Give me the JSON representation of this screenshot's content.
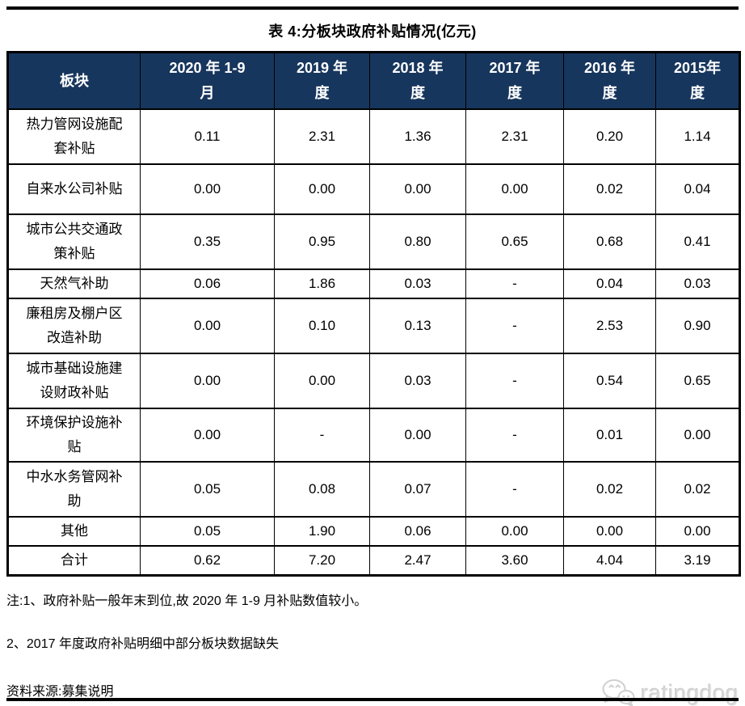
{
  "title": "表 4:分板块政府补贴情况(亿元)",
  "table": {
    "columns": [
      "板块",
      "2020 年 1-9\n月",
      "2019 年\n度",
      "2018 年\n度",
      "2017 年\n度",
      "2016 年\n度",
      "2015年\n度"
    ],
    "rows": [
      {
        "label": "热力管网设施配\n套补贴",
        "values": [
          "0.11",
          "2.31",
          "1.36",
          "2.31",
          "0.20",
          "1.14"
        ]
      },
      {
        "label": "自来水公司补贴",
        "values": [
          "0.00",
          "0.00",
          "0.00",
          "0.00",
          "0.02",
          "0.04"
        ]
      },
      {
        "label": "城市公共交通政\n策补贴",
        "values": [
          "0.35",
          "0.95",
          "0.80",
          "0.65",
          "0.68",
          "0.41"
        ]
      },
      {
        "label": "天然气补助",
        "values": [
          "0.06",
          "1.86",
          "0.03",
          "-",
          "0.04",
          "0.03"
        ]
      },
      {
        "label": "廉租房及棚户区\n改造补助",
        "values": [
          "0.00",
          "0.10",
          "0.13",
          "-",
          "2.53",
          "0.90"
        ]
      },
      {
        "label": "城市基础设施建\n设财政补贴",
        "values": [
          "0.00",
          "0.00",
          "0.03",
          "-",
          "0.54",
          "0.65"
        ]
      },
      {
        "label": "环境保护设施补\n贴",
        "values": [
          "0.00",
          "-",
          "0.00",
          "-",
          "0.01",
          "0.00"
        ]
      },
      {
        "label": "中水水务管网补\n助",
        "values": [
          "0.05",
          "0.08",
          "0.07",
          "-",
          "0.02",
          "0.02"
        ]
      },
      {
        "label": "其他",
        "values": [
          "0.05",
          "1.90",
          "0.06",
          "0.00",
          "0.00",
          "0.00"
        ]
      },
      {
        "label": "合计",
        "values": [
          "0.62",
          "7.20",
          "2.47",
          "3.60",
          "4.04",
          "3.19"
        ]
      }
    ]
  },
  "notes": [
    "注:1、政府补贴一般年末到位,故 2020 年 1-9 月补贴数值较小。",
    "2、2017 年度政府补贴明细中部分板块数据缺失"
  ],
  "source": "资料来源:募集说明",
  "watermark": {
    "text": "ratingdog",
    "icon": "wechat-chat-bubbles-icon"
  },
  "colors": {
    "header_bg": "#17365D",
    "header_text": "#FFFFFF",
    "border": "#000000",
    "watermark_gray": "#D6D6D6"
  }
}
